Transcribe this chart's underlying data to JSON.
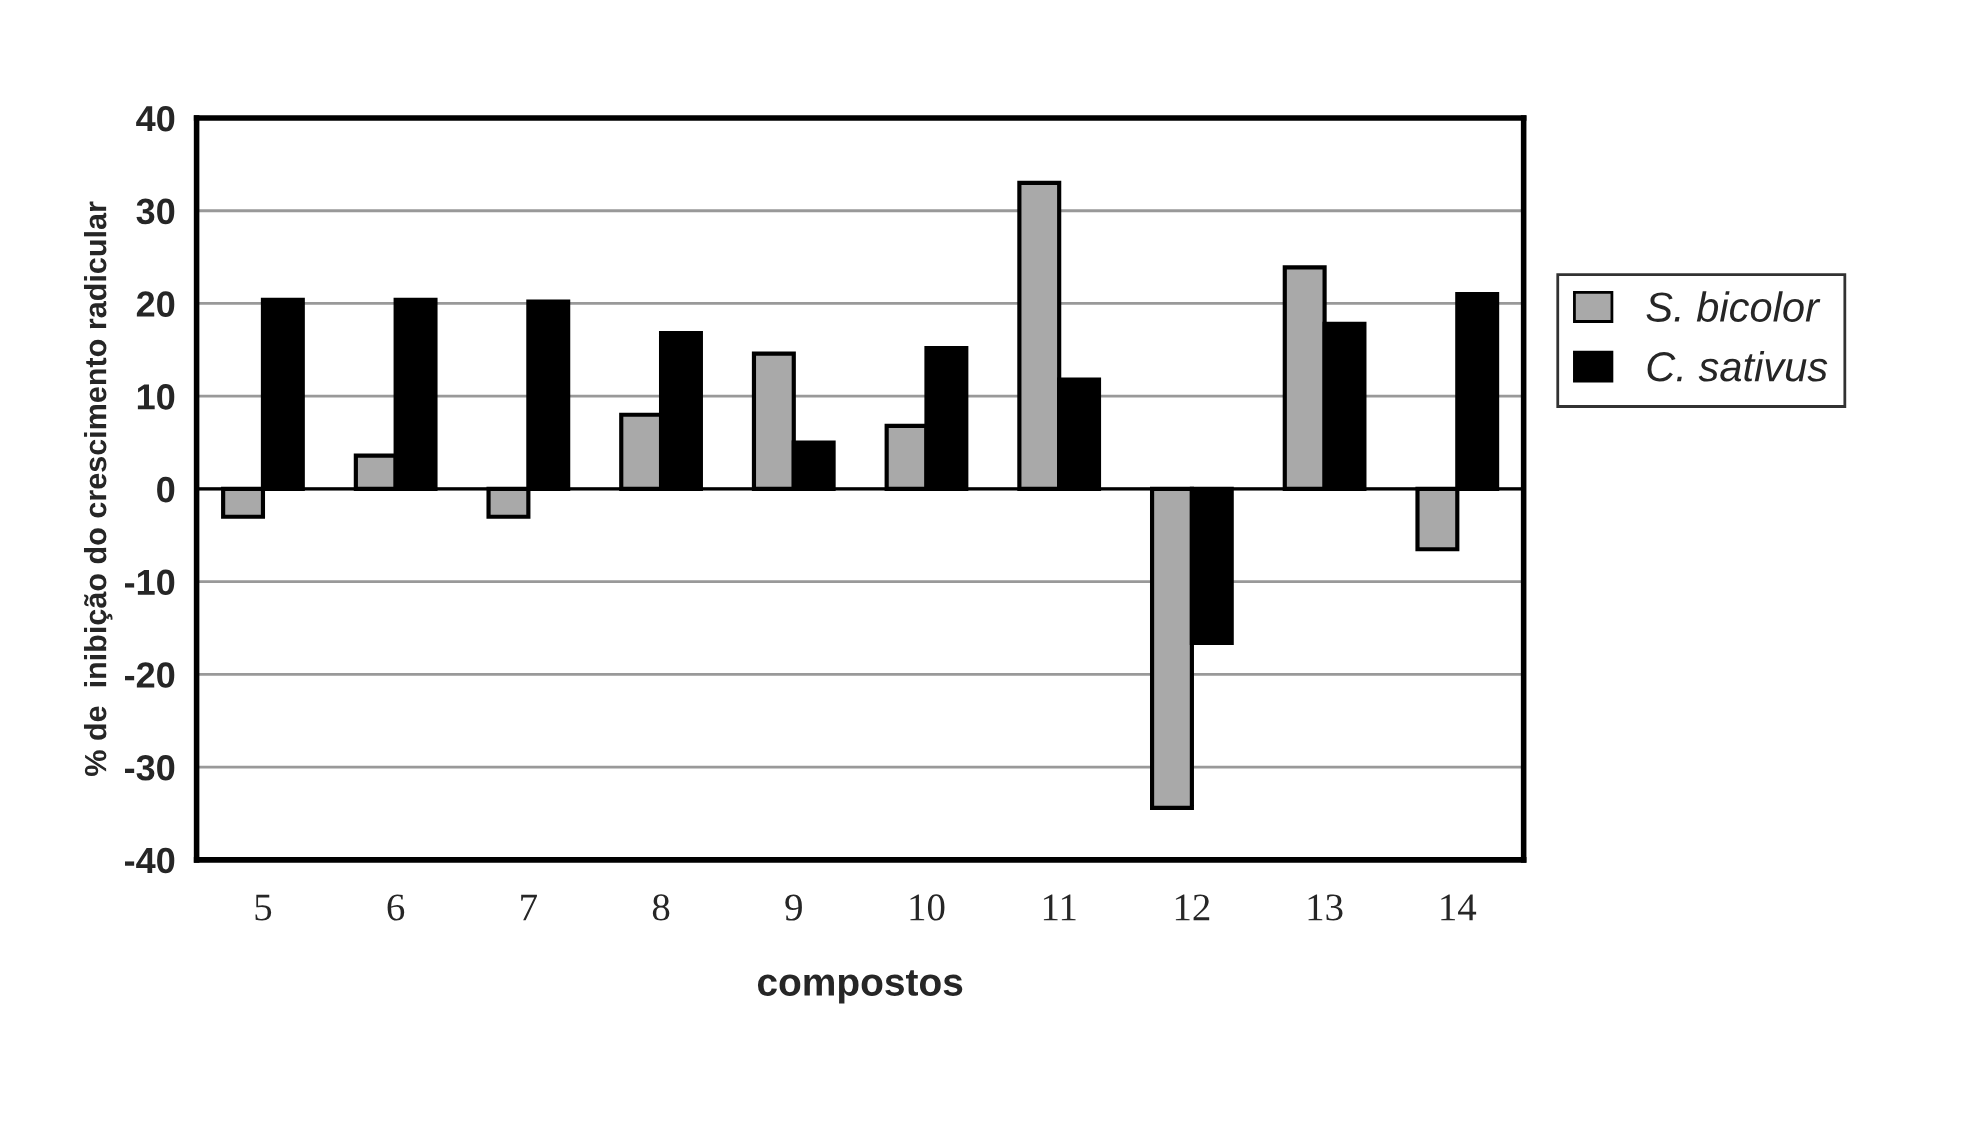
{
  "chart_data": {
    "type": "bar",
    "xlabel": "compostos",
    "ylabel": "% de  inibição do crescimento radicular",
    "categories": [
      "5",
      "6",
      "7",
      "8",
      "9",
      "10",
      "11",
      "12",
      "13",
      "14"
    ],
    "series": [
      {
        "name": "S. bicolor",
        "color": "#a9a9a9",
        "values": [
          -3,
          3.6,
          -3,
          8,
          14.6,
          6.8,
          33,
          -34.4,
          23.9,
          -6.5
        ]
      },
      {
        "name": "C. sativus",
        "color": "#000000",
        "values": [
          20.4,
          20.4,
          20.2,
          16.8,
          5,
          15.2,
          11.8,
          -16.6,
          17.8,
          21
        ]
      }
    ],
    "ylim": [
      -40,
      40
    ],
    "yticks": [
      -40,
      -30,
      -20,
      -10,
      0,
      10,
      20,
      30,
      40
    ],
    "grid": "y",
    "legend": "right"
  }
}
